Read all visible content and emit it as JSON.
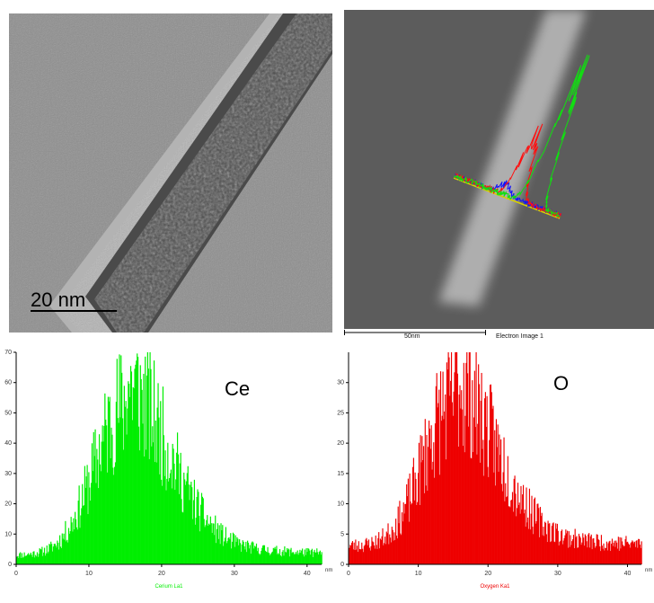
{
  "tem_image": {
    "scale_label": "20  nm"
  },
  "stem_image": {
    "scale_label": "50nm",
    "caption": "Electron Image 1"
  },
  "element_labels": {
    "ce": "Ce",
    "o": "O"
  },
  "chart_data": [
    {
      "type": "bar",
      "title": "",
      "xlabel": "Cerium La1",
      "x_unit": "nm",
      "ylabel": "",
      "xlim": [
        0,
        42
      ],
      "ylim": [
        0,
        70
      ],
      "x_ticks": [
        0,
        10,
        20,
        30,
        40
      ],
      "y_ticks": [
        0,
        10,
        20,
        30,
        40,
        50,
        60,
        70
      ],
      "color": "#00ee00",
      "profile": {
        "shape": "gaussian-skewed",
        "peak_x": 15,
        "peak_y": 65,
        "baseline": 3,
        "points": 380
      }
    },
    {
      "type": "bar",
      "title": "",
      "xlabel": "Oxygen Ka1",
      "x_unit": "nm",
      "ylabel": "",
      "xlim": [
        0,
        42
      ],
      "ylim": [
        0,
        35
      ],
      "x_ticks": [
        0,
        10,
        20,
        30,
        40
      ],
      "y_ticks": [
        0,
        5,
        10,
        15,
        20,
        25,
        30
      ],
      "color": "#ee0000",
      "profile": {
        "shape": "gaussian-skewed",
        "peak_x": 15,
        "peak_y": 33,
        "baseline": 3,
        "points": 380
      }
    }
  ]
}
